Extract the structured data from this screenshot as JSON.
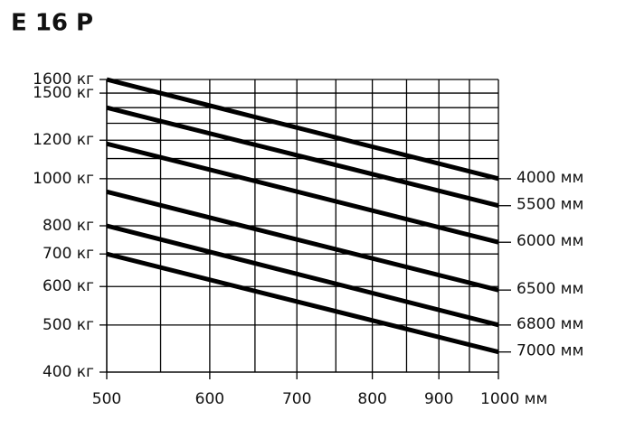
{
  "chart_data": {
    "type": "line",
    "title": "E 16 P",
    "x": [
      500,
      1000
    ],
    "series": [
      {
        "name": "4000 мм",
        "color": "#000000",
        "values": [
          1600,
          1000
        ]
      },
      {
        "name": "5500 мм",
        "color": "#000000",
        "values": [
          1400,
          880
        ]
      },
      {
        "name": "6000 мм",
        "color": "#000000",
        "values": [
          1180,
          740
        ]
      },
      {
        "name": "6500 мм",
        "color": "#000000",
        "values": [
          940,
          590
        ]
      },
      {
        "name": "6800 мм",
        "color": "#000000",
        "values": [
          800,
          500
        ]
      },
      {
        "name": "7000 мм",
        "color": "#000000",
        "values": [
          700,
          440
        ]
      }
    ],
    "xlim": [
      500,
      1000
    ],
    "ylim": [
      400,
      1600
    ],
    "xticks": [
      500,
      600,
      700,
      800,
      900,
      {
        "value": 1000,
        "label": "1000 мм"
      }
    ],
    "yticks": [
      {
        "value": 400,
        "label": "400 кг"
      },
      {
        "value": 500,
        "label": "500 кг"
      },
      {
        "value": 600,
        "label": "600 кг"
      },
      {
        "value": 700,
        "label": "700 кг"
      },
      {
        "value": 800,
        "label": "800 кг"
      },
      {
        "value": 1000,
        "label": "1000 кг"
      },
      {
        "value": 1200,
        "label": "1200 кг"
      },
      {
        "value": 1500,
        "label": "1500 кг"
      },
      {
        "value": 1600,
        "label": "1600 кг"
      }
    ],
    "xminor": [
      550,
      650,
      750,
      850,
      950
    ],
    "yminor": [
      1100,
      1300,
      1400
    ],
    "xscale": "log",
    "yscale": "log",
    "grid": true
  }
}
